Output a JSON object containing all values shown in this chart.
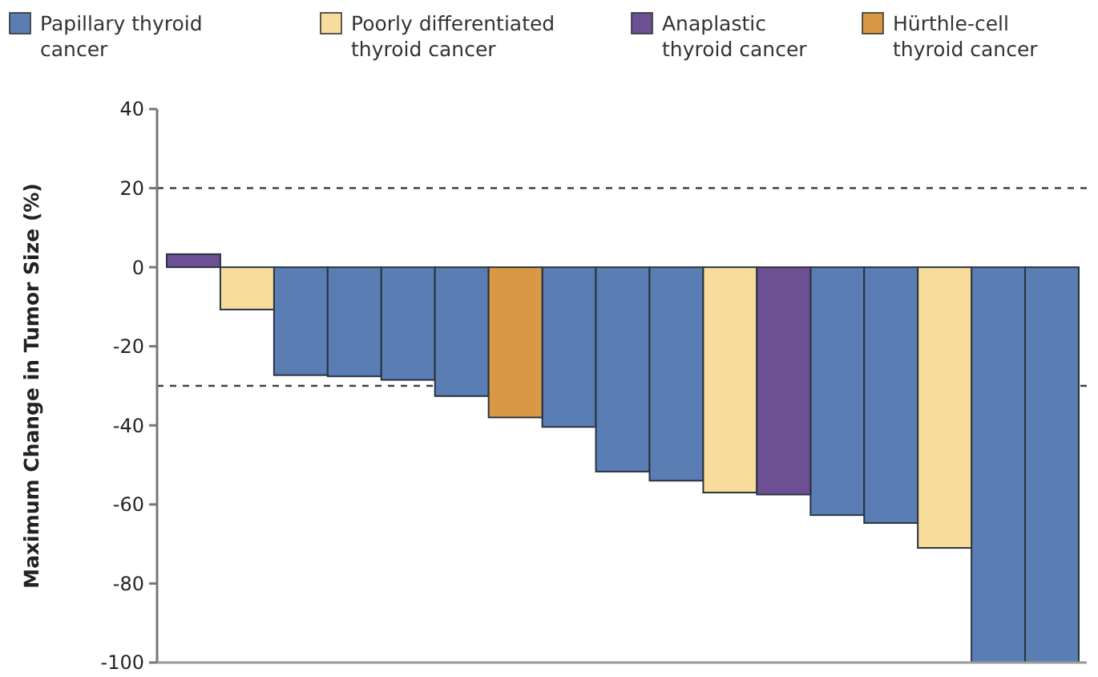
{
  "chart_data": {
    "type": "bar",
    "ylabel": "Maximum Change in Tumor Size (%)",
    "categories": [
      null,
      null,
      null,
      null,
      null,
      null,
      null,
      null,
      null,
      null,
      null,
      null,
      null,
      null,
      null,
      null,
      null
    ],
    "series": [
      {
        "name": "Papillary thyroid\ncancer",
        "color": "#5a7db3",
        "values": [
          null,
          null,
          -27.3,
          -27.6,
          -28.5,
          -32.6,
          null,
          -40.4,
          -51.7,
          -54,
          null,
          null,
          -62.7,
          -64.7,
          null,
          -100,
          -100
        ]
      },
      {
        "name": "Poorly differentiated\nthyroid cancer",
        "color": "#f8dc9c",
        "values": [
          null,
          -10.7,
          null,
          null,
          null,
          null,
          null,
          null,
          null,
          null,
          -57,
          null,
          null,
          null,
          -71,
          null,
          null
        ]
      },
      {
        "name": "Anaplastic\nthyroid cancer",
        "color": "#6c5093",
        "values": [
          3.3,
          null,
          null,
          null,
          null,
          null,
          null,
          null,
          null,
          null,
          null,
          -57.5,
          null,
          null,
          null,
          null,
          null
        ]
      },
      {
        "name": "Hürthle-cell\nthyroid cancer",
        "color": "#d99843",
        "values": [
          null,
          null,
          null,
          null,
          null,
          null,
          -38,
          null,
          null,
          null,
          null,
          null,
          null,
          null,
          null,
          null,
          null
        ]
      }
    ],
    "ylim": [
      -100,
      40
    ],
    "yticks": [
      -100,
      -80,
      -60,
      -40,
      -20,
      0,
      20,
      40
    ],
    "ref_lines": [
      {
        "axis": "y",
        "value": 20,
        "line_style": "dashed"
      },
      {
        "axis": "y",
        "value": -30,
        "line_style": "dashed"
      }
    ],
    "legend": "top",
    "grid": false
  }
}
